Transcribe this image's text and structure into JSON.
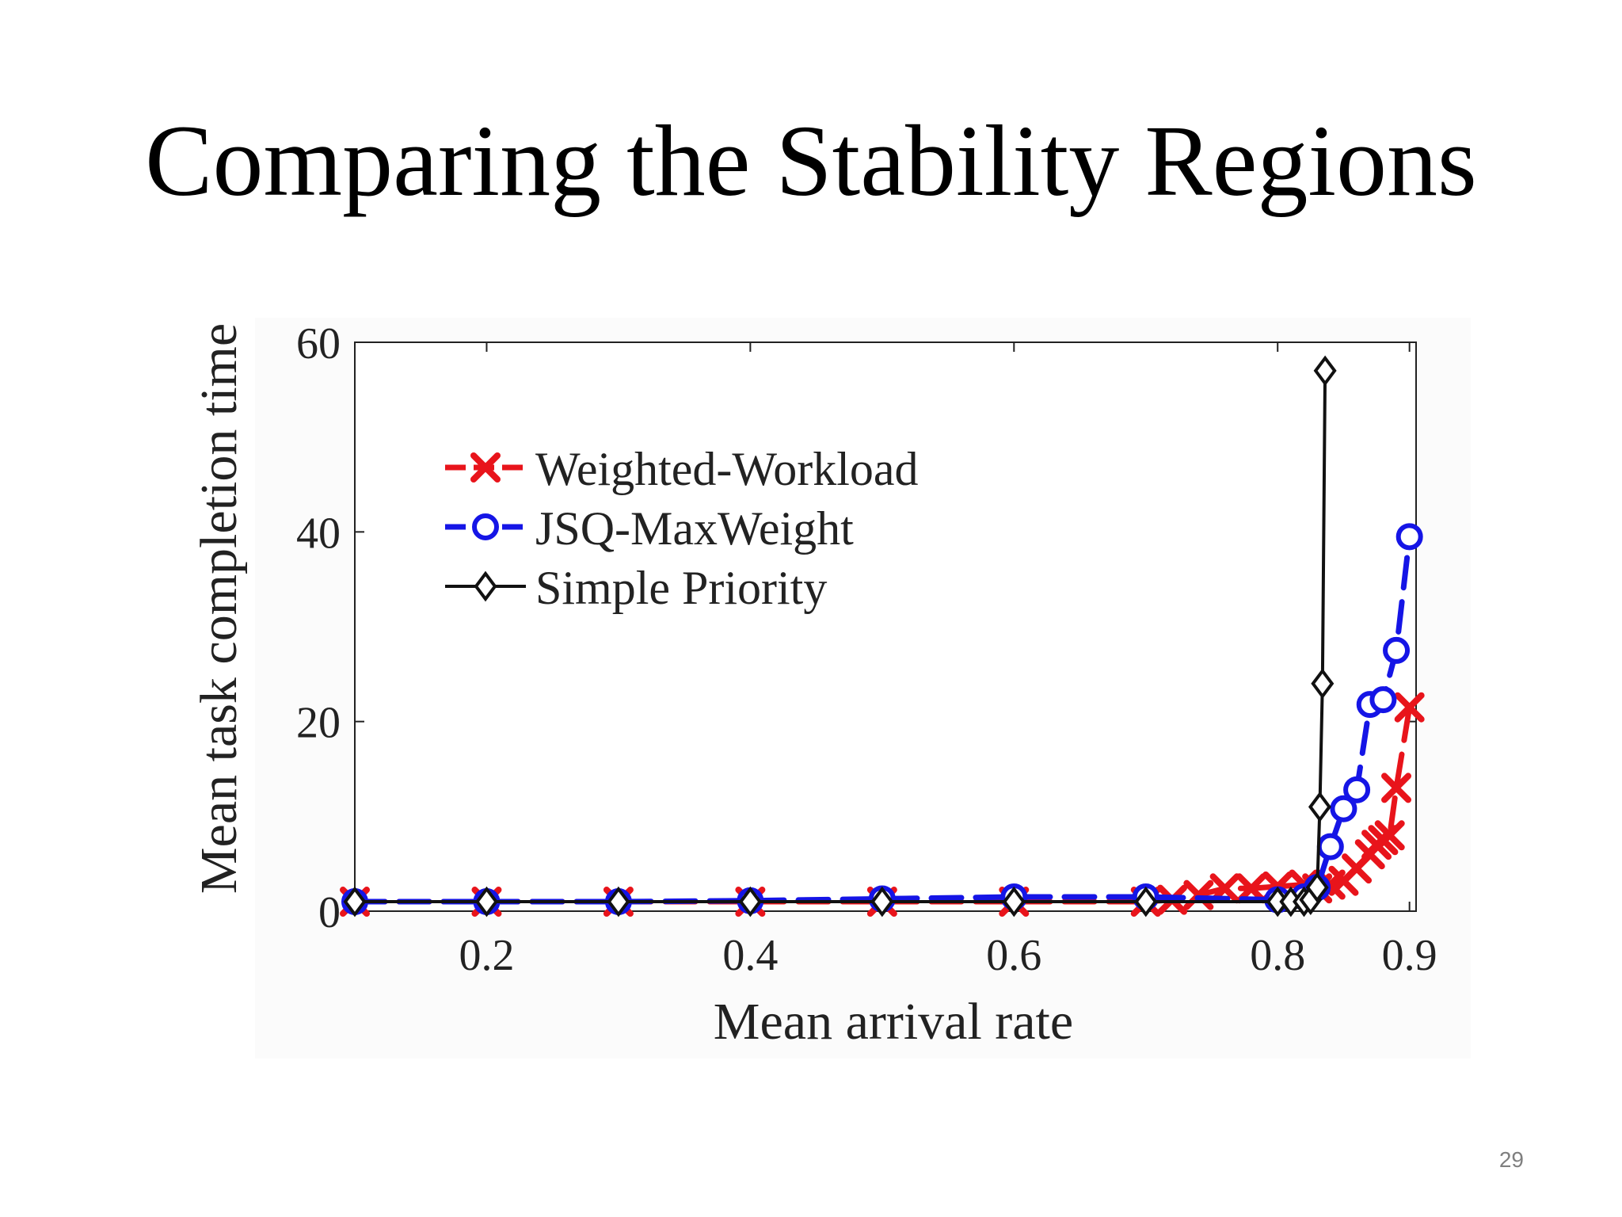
{
  "slide": {
    "title": "Comparing the Stability Regions",
    "page_number": "29"
  },
  "chart_data": {
    "type": "line",
    "xlabel": "Mean arrival rate",
    "ylabel": "Mean task completion time",
    "xlim": [
      0.1,
      0.905
    ],
    "ylim": [
      0,
      60
    ],
    "x_ticks": [
      0.2,
      0.4,
      0.6,
      0.8,
      0.9
    ],
    "x_tick_labels": [
      "0.2",
      "0.4",
      "0.6",
      "0.8",
      "0.9"
    ],
    "y_ticks": [
      0,
      20,
      40,
      60
    ],
    "y_tick_labels": [
      "0",
      "20",
      "40",
      "60"
    ],
    "grid": false,
    "legend_position": "top-left",
    "series": [
      {
        "name": "Weighted-Workload",
        "color": "#e8141b",
        "marker": "x",
        "line_style": "dashed",
        "points": [
          [
            0.1,
            1.0
          ],
          [
            0.2,
            1.0
          ],
          [
            0.3,
            1.0
          ],
          [
            0.4,
            1.0
          ],
          [
            0.5,
            1.0
          ],
          [
            0.6,
            1.0
          ],
          [
            0.7,
            1.0
          ],
          [
            0.72,
            1.2
          ],
          [
            0.74,
            1.7
          ],
          [
            0.76,
            2.4
          ],
          [
            0.78,
            2.4
          ],
          [
            0.8,
            2.6
          ],
          [
            0.82,
            2.8
          ],
          [
            0.83,
            2.4
          ],
          [
            0.84,
            2.8
          ],
          [
            0.85,
            3.2
          ],
          [
            0.86,
            4.5
          ],
          [
            0.87,
            6.0
          ],
          [
            0.875,
            7.0
          ],
          [
            0.88,
            7.5
          ],
          [
            0.885,
            8.0
          ],
          [
            0.89,
            13.0
          ],
          [
            0.9,
            21.5
          ]
        ]
      },
      {
        "name": "JSQ-MaxWeight",
        "color": "#1515e6",
        "marker": "circle",
        "line_style": "dashed",
        "points": [
          [
            0.1,
            1.0
          ],
          [
            0.2,
            1.0
          ],
          [
            0.3,
            1.0
          ],
          [
            0.4,
            1.1
          ],
          [
            0.5,
            1.3
          ],
          [
            0.6,
            1.5
          ],
          [
            0.7,
            1.5
          ],
          [
            0.8,
            1.2
          ],
          [
            0.82,
            1.5
          ],
          [
            0.83,
            2.5
          ],
          [
            0.84,
            6.8
          ],
          [
            0.85,
            10.8
          ],
          [
            0.86,
            12.8
          ],
          [
            0.87,
            21.8
          ],
          [
            0.88,
            22.3
          ],
          [
            0.89,
            27.5
          ],
          [
            0.9,
            39.5
          ]
        ]
      },
      {
        "name": "Simple Priority",
        "color": "#111111",
        "marker": "diamond",
        "line_style": "solid",
        "points": [
          [
            0.1,
            1.0
          ],
          [
            0.2,
            1.0
          ],
          [
            0.3,
            1.0
          ],
          [
            0.4,
            1.0
          ],
          [
            0.5,
            1.0
          ],
          [
            0.6,
            1.0
          ],
          [
            0.7,
            1.0
          ],
          [
            0.8,
            1.0
          ],
          [
            0.81,
            1.0
          ],
          [
            0.82,
            1.0
          ],
          [
            0.825,
            1.2
          ],
          [
            0.83,
            2.5
          ],
          [
            0.832,
            11.0
          ],
          [
            0.834,
            24.0
          ],
          [
            0.836,
            57.0
          ]
        ]
      }
    ]
  }
}
